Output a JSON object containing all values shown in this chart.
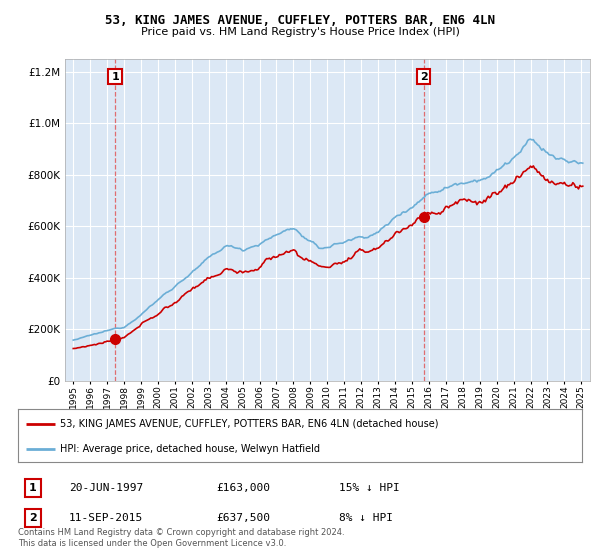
{
  "title": "53, KING JAMES AVENUE, CUFFLEY, POTTERS BAR, EN6 4LN",
  "subtitle": "Price paid vs. HM Land Registry's House Price Index (HPI)",
  "legend_line1": "53, KING JAMES AVENUE, CUFFLEY, POTTERS BAR, EN6 4LN (detached house)",
  "legend_line2": "HPI: Average price, detached house, Welwyn Hatfield",
  "annotation1_label": "1",
  "annotation1_date": "20-JUN-1997",
  "annotation1_price": "£163,000",
  "annotation1_hpi": "15% ↓ HPI",
  "annotation2_label": "2",
  "annotation2_date": "11-SEP-2015",
  "annotation2_price": "£637,500",
  "annotation2_hpi": "8% ↓ HPI",
  "footnote": "Contains HM Land Registry data © Crown copyright and database right 2024.\nThis data is licensed under the Open Government Licence v3.0.",
  "sale1_year": 1997.47,
  "sale1_price": 163000,
  "sale2_year": 2015.7,
  "sale2_price": 637500,
  "hpi_color": "#6baed6",
  "property_color": "#CC0000",
  "dashed_line_color": "#e06060",
  "background_plot": "#dce8f5",
  "ylim_min": 0,
  "ylim_max": 1250000,
  "xlim_min": 1994.5,
  "xlim_max": 2025.5
}
